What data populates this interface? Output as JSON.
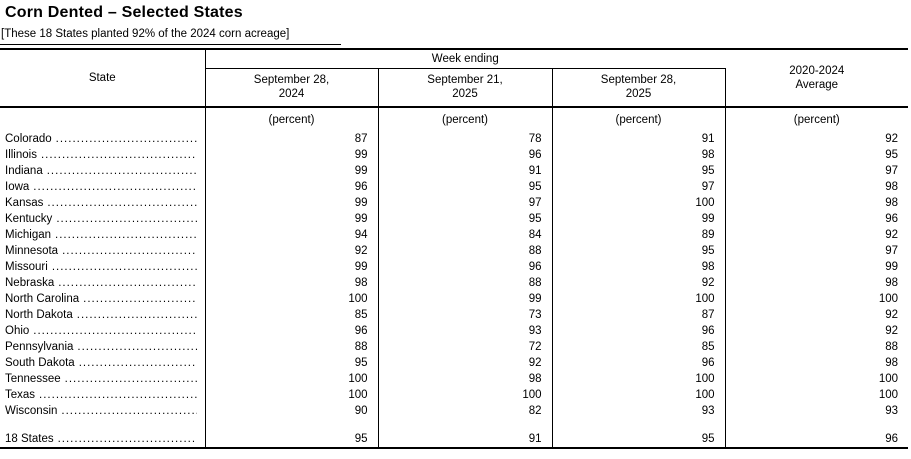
{
  "title": "Corn Dented – Selected States",
  "subtitle": "[These 18 States planted 92% of the 2024 corn acreage]",
  "table": {
    "state_header": "State",
    "group_header": "Week ending",
    "avg_header": {
      "line1": "2020-2024",
      "line2": "Average"
    },
    "columns": [
      {
        "line1": "September 28,",
        "line2": "2024"
      },
      {
        "line1": "September 21,",
        "line2": "2025"
      },
      {
        "line1": "September 28,",
        "line2": "2025"
      }
    ],
    "unit": "(percent)",
    "leader_char": ".",
    "rows": [
      {
        "state": "Colorado",
        "values": [
          87,
          78,
          91,
          92
        ]
      },
      {
        "state": "Illinois",
        "values": [
          99,
          96,
          98,
          95
        ]
      },
      {
        "state": "Indiana",
        "values": [
          99,
          91,
          95,
          97
        ]
      },
      {
        "state": "Iowa",
        "values": [
          96,
          95,
          97,
          98
        ]
      },
      {
        "state": "Kansas",
        "values": [
          99,
          97,
          100,
          98
        ]
      },
      {
        "state": "Kentucky",
        "values": [
          99,
          95,
          99,
          96
        ]
      },
      {
        "state": "Michigan",
        "values": [
          94,
          84,
          89,
          92
        ]
      },
      {
        "state": "Minnesota",
        "values": [
          92,
          88,
          95,
          97
        ]
      },
      {
        "state": "Missouri",
        "values": [
          99,
          96,
          98,
          99
        ]
      },
      {
        "state": "Nebraska",
        "values": [
          98,
          88,
          92,
          98
        ]
      },
      {
        "state": "North Carolina",
        "values": [
          100,
          99,
          100,
          100
        ]
      },
      {
        "state": "North Dakota",
        "values": [
          85,
          73,
          87,
          92
        ]
      },
      {
        "state": "Ohio",
        "values": [
          96,
          93,
          96,
          92
        ]
      },
      {
        "state": "Pennsylvania",
        "values": [
          88,
          72,
          85,
          88
        ]
      },
      {
        "state": "South Dakota",
        "values": [
          95,
          92,
          96,
          98
        ]
      },
      {
        "state": "Tennessee",
        "values": [
          100,
          98,
          100,
          100
        ]
      },
      {
        "state": "Texas",
        "values": [
          100,
          100,
          100,
          100
        ]
      },
      {
        "state": "Wisconsin",
        "values": [
          90,
          82,
          93,
          93
        ]
      }
    ],
    "total_row": {
      "state": "18 States",
      "values": [
        95,
        91,
        95,
        96
      ]
    }
  }
}
